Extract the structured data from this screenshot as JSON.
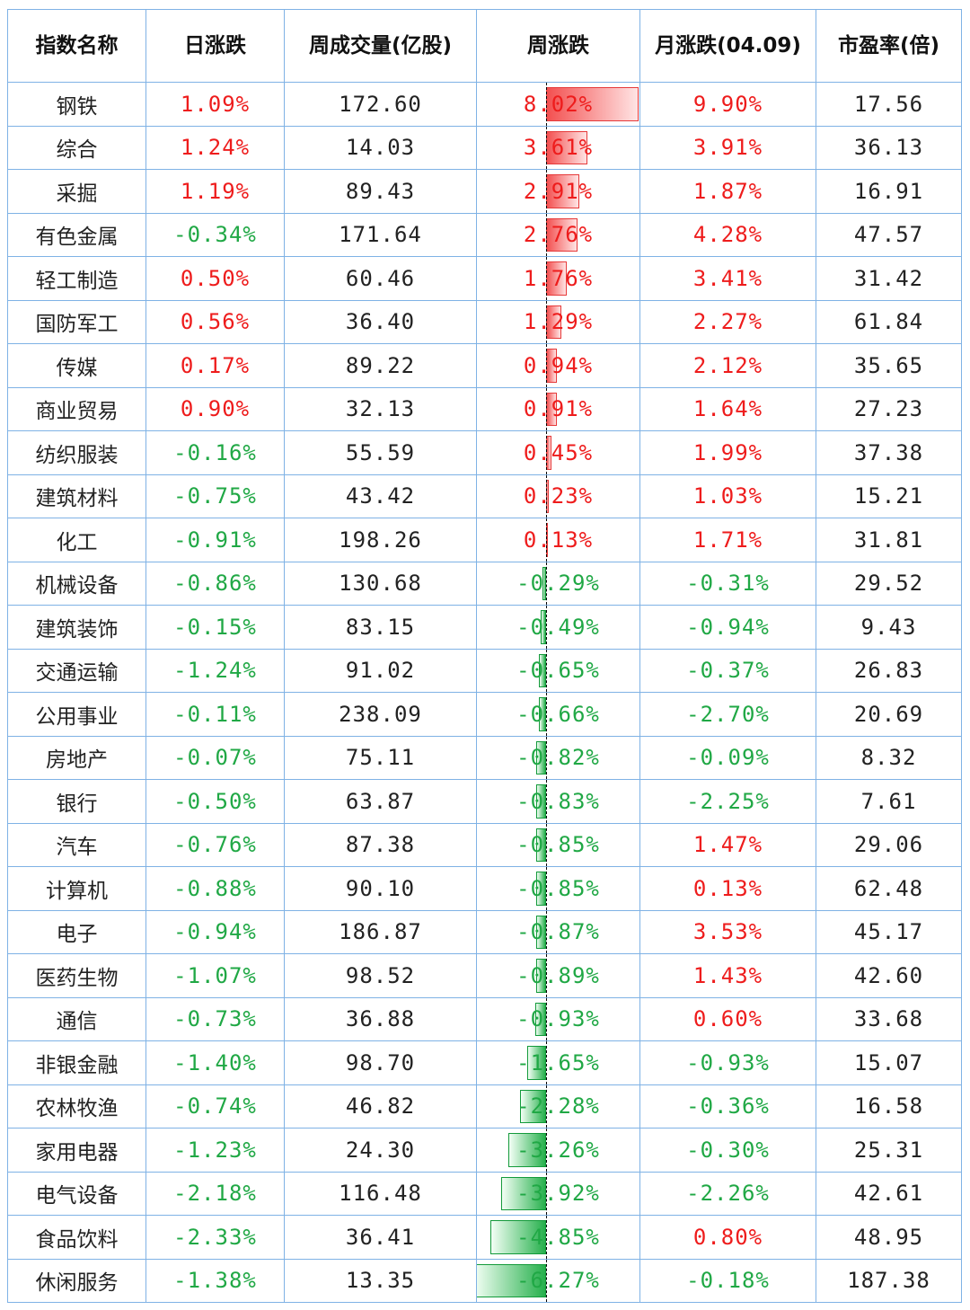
{
  "headers": [
    "指数名称",
    "日涨跌",
    "周成交量(亿股)",
    "周涨跌",
    "月涨跌(04.09)",
    "市盈率(倍)"
  ],
  "weekly_bar_max_percent": 8.02,
  "rows": [
    {
      "name": "钢铁",
      "daily": "1.09%",
      "volume": "172.60",
      "weekly": "8.02%",
      "weekly_value": 8.02,
      "monthly": "9.90%",
      "pe": "17.56"
    },
    {
      "name": "综合",
      "daily": "1.24%",
      "volume": "14.03",
      "weekly": "3.61%",
      "weekly_value": 3.61,
      "monthly": "3.91%",
      "pe": "36.13"
    },
    {
      "name": "采掘",
      "daily": "1.19%",
      "volume": "89.43",
      "weekly": "2.91%",
      "weekly_value": 2.91,
      "monthly": "1.87%",
      "pe": "16.91"
    },
    {
      "name": "有色金属",
      "daily": "-0.34%",
      "volume": "171.64",
      "weekly": "2.76%",
      "weekly_value": 2.76,
      "monthly": "4.28%",
      "pe": "47.57"
    },
    {
      "name": "轻工制造",
      "daily": "0.50%",
      "volume": "60.46",
      "weekly": "1.76%",
      "weekly_value": 1.76,
      "monthly": "3.41%",
      "pe": "31.42"
    },
    {
      "name": "国防军工",
      "daily": "0.56%",
      "volume": "36.40",
      "weekly": "1.29%",
      "weekly_value": 1.29,
      "monthly": "2.27%",
      "pe": "61.84"
    },
    {
      "name": "传媒",
      "daily": "0.17%",
      "volume": "89.22",
      "weekly": "0.94%",
      "weekly_value": 0.94,
      "monthly": "2.12%",
      "pe": "35.65"
    },
    {
      "name": "商业贸易",
      "daily": "0.90%",
      "volume": "32.13",
      "weekly": "0.91%",
      "weekly_value": 0.91,
      "monthly": "1.64%",
      "pe": "27.23"
    },
    {
      "name": "纺织服装",
      "daily": "-0.16%",
      "volume": "55.59",
      "weekly": "0.45%",
      "weekly_value": 0.45,
      "monthly": "1.99%",
      "pe": "37.38"
    },
    {
      "name": "建筑材料",
      "daily": "-0.75%",
      "volume": "43.42",
      "weekly": "0.23%",
      "weekly_value": 0.23,
      "monthly": "1.03%",
      "pe": "15.21"
    },
    {
      "name": "化工",
      "daily": "-0.91%",
      "volume": "198.26",
      "weekly": "0.13%",
      "weekly_value": 0.13,
      "monthly": "1.71%",
      "pe": "31.81"
    },
    {
      "name": "机械设备",
      "daily": "-0.86%",
      "volume": "130.68",
      "weekly": "-0.29%",
      "weekly_value": -0.29,
      "monthly": "-0.31%",
      "pe": "29.52"
    },
    {
      "name": "建筑装饰",
      "daily": "-0.15%",
      "volume": "83.15",
      "weekly": "-0.49%",
      "weekly_value": -0.49,
      "monthly": "-0.94%",
      "pe": "9.43"
    },
    {
      "name": "交通运输",
      "daily": "-1.24%",
      "volume": "91.02",
      "weekly": "-0.65%",
      "weekly_value": -0.65,
      "monthly": "-0.37%",
      "pe": "26.83"
    },
    {
      "name": "公用事业",
      "daily": "-0.11%",
      "volume": "238.09",
      "weekly": "-0.66%",
      "weekly_value": -0.66,
      "monthly": "-2.70%",
      "pe": "20.69"
    },
    {
      "name": "房地产",
      "daily": "-0.07%",
      "volume": "75.11",
      "weekly": "-0.82%",
      "weekly_value": -0.82,
      "monthly": "-0.09%",
      "pe": "8.32"
    },
    {
      "name": "银行",
      "daily": "-0.50%",
      "volume": "63.87",
      "weekly": "-0.83%",
      "weekly_value": -0.83,
      "monthly": "-2.25%",
      "pe": "7.61"
    },
    {
      "name": "汽车",
      "daily": "-0.76%",
      "volume": "87.38",
      "weekly": "-0.85%",
      "weekly_value": -0.85,
      "monthly": "1.47%",
      "pe": "29.06"
    },
    {
      "name": "计算机",
      "daily": "-0.88%",
      "volume": "90.10",
      "weekly": "-0.85%",
      "weekly_value": -0.85,
      "monthly": "0.13%",
      "pe": "62.48"
    },
    {
      "name": "电子",
      "daily": "-0.94%",
      "volume": "186.87",
      "weekly": "-0.87%",
      "weekly_value": -0.87,
      "monthly": "3.53%",
      "pe": "45.17"
    },
    {
      "name": "医药生物",
      "daily": "-1.07%",
      "volume": "98.52",
      "weekly": "-0.89%",
      "weekly_value": -0.89,
      "monthly": "1.43%",
      "pe": "42.60"
    },
    {
      "name": "通信",
      "daily": "-0.73%",
      "volume": "36.88",
      "weekly": "-0.93%",
      "weekly_value": -0.93,
      "monthly": "0.60%",
      "pe": "33.68"
    },
    {
      "name": "非银金融",
      "daily": "-1.40%",
      "volume": "98.70",
      "weekly": "-1.65%",
      "weekly_value": -1.65,
      "monthly": "-0.93%",
      "pe": "15.07"
    },
    {
      "name": "农林牧渔",
      "daily": "-0.74%",
      "volume": "46.82",
      "weekly": "-2.28%",
      "weekly_value": -2.28,
      "monthly": "-0.36%",
      "pe": "16.58"
    },
    {
      "name": "家用电器",
      "daily": "-1.23%",
      "volume": "24.30",
      "weekly": "-3.26%",
      "weekly_value": -3.26,
      "monthly": "-0.30%",
      "pe": "25.31"
    },
    {
      "name": "电气设备",
      "daily": "-2.18%",
      "volume": "116.48",
      "weekly": "-3.92%",
      "weekly_value": -3.92,
      "monthly": "-2.26%",
      "pe": "42.61"
    },
    {
      "name": "食品饮料",
      "daily": "-2.33%",
      "volume": "36.41",
      "weekly": "-4.85%",
      "weekly_value": -4.85,
      "monthly": "0.80%",
      "pe": "48.95"
    },
    {
      "name": "休闲服务",
      "daily": "-1.38%",
      "volume": "13.35",
      "weekly": "-6.27%",
      "weekly_value": -6.27,
      "monthly": "-0.18%",
      "pe": "187.38"
    }
  ],
  "colors": {
    "positive": "#ee1c1c",
    "negative": "#20a845",
    "border": "#7fb2e5",
    "bar_up": "#f35050",
    "bar_down": "#26b04c"
  }
}
